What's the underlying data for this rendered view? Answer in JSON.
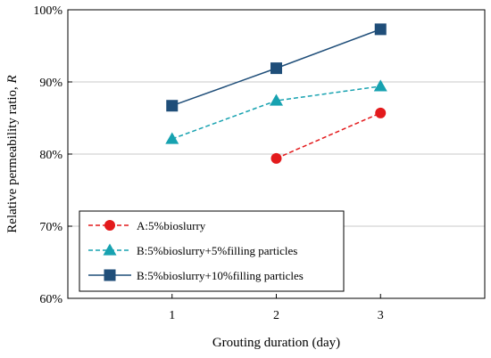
{
  "chart_data": {
    "type": "line",
    "xlabel": "Grouting duration (day)",
    "ylabel": "Relative permeability ratio, ",
    "ylabel_symbol": "R",
    "xlim": [
      0,
      4
    ],
    "ylim": [
      0.6,
      1.0
    ],
    "xticks": [
      1,
      2,
      3
    ],
    "xtick_labels": [
      "1",
      "2",
      "3"
    ],
    "yticks": [
      0.6,
      0.7,
      0.8,
      0.9,
      1.0
    ],
    "ytick_labels": [
      "60%",
      "70%",
      "80%",
      "90%",
      "100%"
    ],
    "grid": "horizontal",
    "legend_position": "bottom-left",
    "series": [
      {
        "name": "A:5%bioslurry",
        "x": [
          2,
          3
        ],
        "y": [
          0.794,
          0.857
        ],
        "color": "#e31a1c",
        "marker": "circle",
        "line_style": "dashed"
      },
      {
        "name": "B:5%bioslurry+5%filling particles",
        "x": [
          1,
          2,
          3
        ],
        "y": [
          0.821,
          0.874,
          0.894
        ],
        "color": "#17a2b0",
        "marker": "triangle",
        "line_style": "dashed"
      },
      {
        "name": "B:5%bioslurry+10%filling particles",
        "x": [
          1,
          2,
          3
        ],
        "y": [
          0.867,
          0.919,
          0.973
        ],
        "color": "#1f4e79",
        "marker": "square",
        "line_style": "solid"
      }
    ]
  }
}
